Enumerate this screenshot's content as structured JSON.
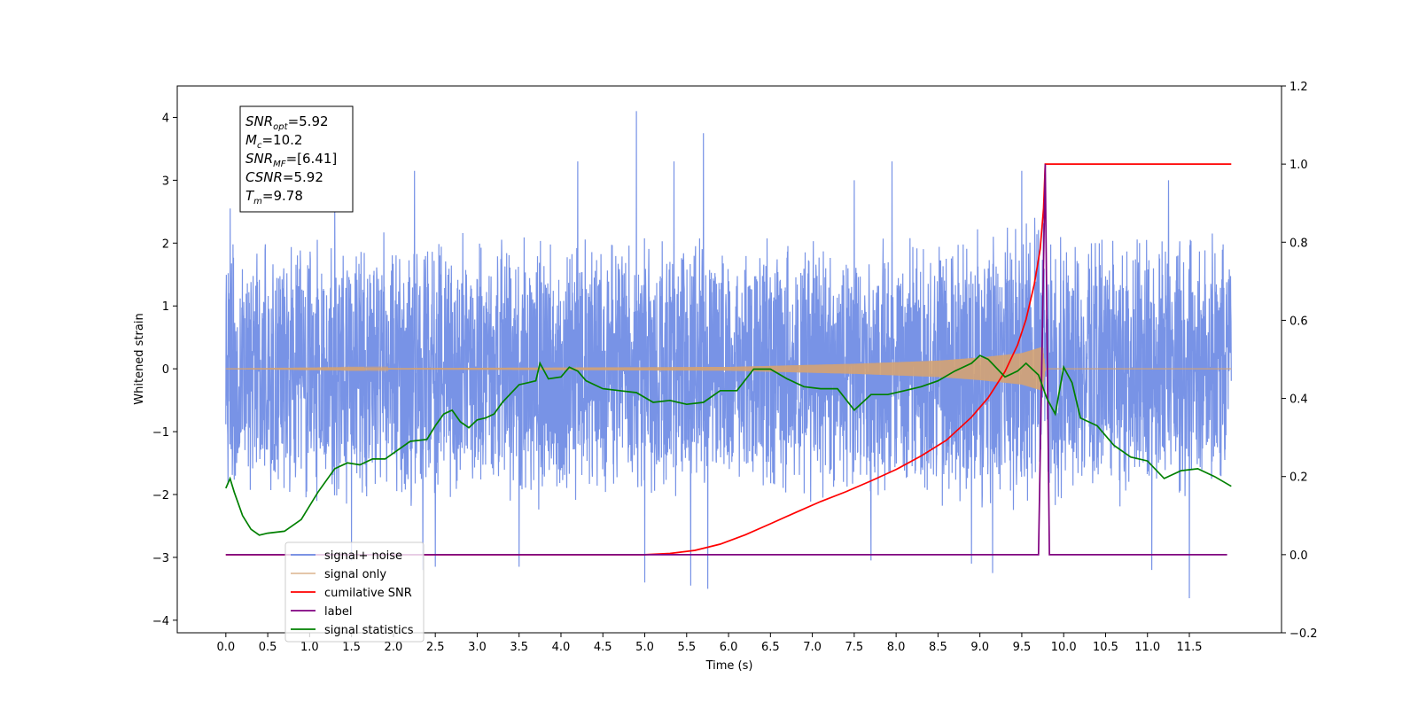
{
  "chart_data": {
    "type": "line",
    "xlabel": "Time (s)",
    "ylabel": "Whitened strain",
    "xlim": [
      -0.58,
      12.6
    ],
    "ylim": [
      -4.2,
      4.5
    ],
    "y2lim": [
      -0.2,
      1.2
    ],
    "x_ticks": [
      0.0,
      0.5,
      1.0,
      1.5,
      2.0,
      2.5,
      3.0,
      3.5,
      4.0,
      4.5,
      5.0,
      5.5,
      6.0,
      6.5,
      7.0,
      7.5,
      8.0,
      8.5,
      9.0,
      9.5,
      10.0,
      10.5,
      11.0,
      11.5
    ],
    "x_tick_labels": [
      "0.0",
      "0.5",
      "1.0",
      "1.5",
      "2.0",
      "2.5",
      "3.0",
      "3.5",
      "4.0",
      "4.5",
      "5.0",
      "5.5",
      "6.0",
      "6.5",
      "7.0",
      "7.5",
      "8.0",
      "8.5",
      "9.0",
      "9.5",
      "10.0",
      "10.5",
      "11.0",
      "11.5"
    ],
    "y_ticks": [
      4,
      3,
      2,
      1,
      0,
      -1,
      -2,
      -3,
      -4
    ],
    "y_tick_labels": [
      "4",
      "3",
      "2",
      "1",
      "0",
      "−1",
      "−2",
      "−3",
      "−4"
    ],
    "y2_ticks": [
      1.2,
      1.0,
      0.8,
      0.6,
      0.4,
      0.2,
      0.0,
      -0.2
    ],
    "y2_tick_labels": [
      "1.2",
      "1.0",
      "0.8",
      "0.6",
      "0.4",
      "0.2",
      "0.0",
      "−0.2"
    ],
    "grid": false,
    "legend_position": "lower-left",
    "colors": {
      "signal_noise": "#6c8ae4",
      "signal_only": "#d4a373",
      "cumulative_snr": "#ff0000",
      "label": "#800080",
      "signal_statistics": "#008000"
    },
    "annotation": {
      "lines": [
        {
          "main": "SNR",
          "sub": "opt",
          "rest": "=5.92"
        },
        {
          "main": "M",
          "sub": "c",
          "rest": "=10.2"
        },
        {
          "main": "SNR",
          "sub": "MF",
          "rest": "=[6.41]"
        },
        {
          "main": "CSNR",
          "sub": "",
          "rest": "=5.92"
        },
        {
          "main": "T",
          "sub": "m",
          "rest": "=9.78"
        }
      ]
    },
    "series": [
      {
        "name": "signal+ noise",
        "axis": "left",
        "kind": "noise",
        "x_range": [
          0.0,
          12.0
        ],
        "envelope": [
          [
            0.0,
            2.1,
            -2.2
          ],
          [
            2.0,
            2.2,
            -2.3
          ],
          [
            6.0,
            2.2,
            -2.2
          ],
          [
            9.0,
            2.3,
            -2.3
          ],
          [
            9.7,
            2.6,
            -2.5
          ],
          [
            10.0,
            2.3,
            -2.3
          ],
          [
            12.0,
            2.2,
            -2.2
          ]
        ],
        "spikes": [
          [
            0.05,
            2.55
          ],
          [
            1.3,
            2.6
          ],
          [
            2.25,
            3.15
          ],
          [
            4.2,
            3.3
          ],
          [
            4.9,
            4.1
          ],
          [
            5.35,
            3.3
          ],
          [
            5.7,
            3.75
          ],
          [
            7.95,
            3.3
          ],
          [
            7.5,
            3.0
          ],
          [
            9.5,
            3.15
          ],
          [
            11.25,
            3.0
          ],
          [
            5.0,
            -3.4
          ],
          [
            5.55,
            -3.45
          ],
          [
            5.75,
            -3.5
          ],
          [
            11.5,
            -3.65
          ],
          [
            2.35,
            -3.2
          ],
          [
            2.5,
            -3.15
          ],
          [
            11.05,
            -3.2
          ],
          [
            9.15,
            -3.25
          ],
          [
            7.7,
            -3.05
          ],
          [
            1.5,
            -3.05
          ],
          [
            3.5,
            -3.15
          ],
          [
            8.9,
            -3.1
          ]
        ]
      },
      {
        "name": "signal only",
        "axis": "left",
        "kind": "chirp",
        "x_range": [
          0.0,
          12.0
        ],
        "amplitude_points": [
          [
            0.0,
            0.0
          ],
          [
            6.0,
            0.03
          ],
          [
            7.5,
            0.08
          ],
          [
            8.5,
            0.13
          ],
          [
            9.0,
            0.18
          ],
          [
            9.5,
            0.25
          ],
          [
            9.75,
            0.35
          ],
          [
            9.78,
            0.0
          ],
          [
            12.0,
            0.0
          ]
        ]
      },
      {
        "name": "cumilative SNR",
        "axis": "right",
        "x": [
          0.0,
          5.0,
          5.3,
          5.6,
          5.9,
          6.2,
          6.5,
          6.8,
          7.1,
          7.4,
          7.7,
          8.0,
          8.3,
          8.6,
          8.9,
          9.1,
          9.3,
          9.45,
          9.55,
          9.65,
          9.72,
          9.76,
          9.78,
          12.0
        ],
        "values": [
          0.0,
          0.0,
          0.003,
          0.011,
          0.027,
          0.051,
          0.079,
          0.108,
          0.136,
          0.161,
          0.189,
          0.218,
          0.253,
          0.293,
          0.352,
          0.402,
          0.469,
          0.537,
          0.602,
          0.693,
          0.782,
          0.887,
          1.0,
          1.0
        ]
      },
      {
        "name": "label",
        "axis": "right",
        "x": [
          0.0,
          9.7,
          9.78,
          9.83,
          11.95
        ],
        "values": [
          0.0,
          0.0,
          1.0,
          0.0,
          0.0
        ]
      },
      {
        "name": "signal statistics",
        "axis": "right",
        "x": [
          0.0,
          0.05,
          0.1,
          0.2,
          0.3,
          0.4,
          0.5,
          0.7,
          0.9,
          1.1,
          1.3,
          1.45,
          1.6,
          1.75,
          1.9,
          2.0,
          2.2,
          2.4,
          2.5,
          2.6,
          2.7,
          2.8,
          2.9,
          3.0,
          3.1,
          3.2,
          3.3,
          3.5,
          3.6,
          3.7,
          3.75,
          3.85,
          4.0,
          4.1,
          4.2,
          4.3,
          4.5,
          4.7,
          4.9,
          5.1,
          5.3,
          5.5,
          5.7,
          5.9,
          6.1,
          6.3,
          6.5,
          6.7,
          6.9,
          7.1,
          7.3,
          7.5,
          7.7,
          7.9,
          8.1,
          8.3,
          8.5,
          8.7,
          8.9,
          9.0,
          9.1,
          9.3,
          9.45,
          9.55,
          9.7,
          9.8,
          9.9,
          10.0,
          10.1,
          10.2,
          10.4,
          10.6,
          10.8,
          11.0,
          11.2,
          11.4,
          11.6,
          11.8,
          12.0
        ],
        "values": [
          0.17,
          0.195,
          0.16,
          0.1,
          0.065,
          0.05,
          0.055,
          0.06,
          0.09,
          0.16,
          0.22,
          0.235,
          0.23,
          0.245,
          0.245,
          0.26,
          0.29,
          0.295,
          0.33,
          0.36,
          0.37,
          0.34,
          0.325,
          0.345,
          0.35,
          0.36,
          0.39,
          0.435,
          0.44,
          0.445,
          0.49,
          0.45,
          0.455,
          0.48,
          0.47,
          0.445,
          0.425,
          0.42,
          0.415,
          0.39,
          0.395,
          0.385,
          0.39,
          0.42,
          0.42,
          0.475,
          0.475,
          0.45,
          0.43,
          0.425,
          0.425,
          0.37,
          0.41,
          0.41,
          0.42,
          0.43,
          0.445,
          0.47,
          0.49,
          0.51,
          0.5,
          0.455,
          0.47,
          0.49,
          0.46,
          0.4,
          0.36,
          0.48,
          0.44,
          0.35,
          0.33,
          0.28,
          0.25,
          0.24,
          0.195,
          0.215,
          0.22,
          0.2,
          0.175
        ]
      }
    ]
  }
}
